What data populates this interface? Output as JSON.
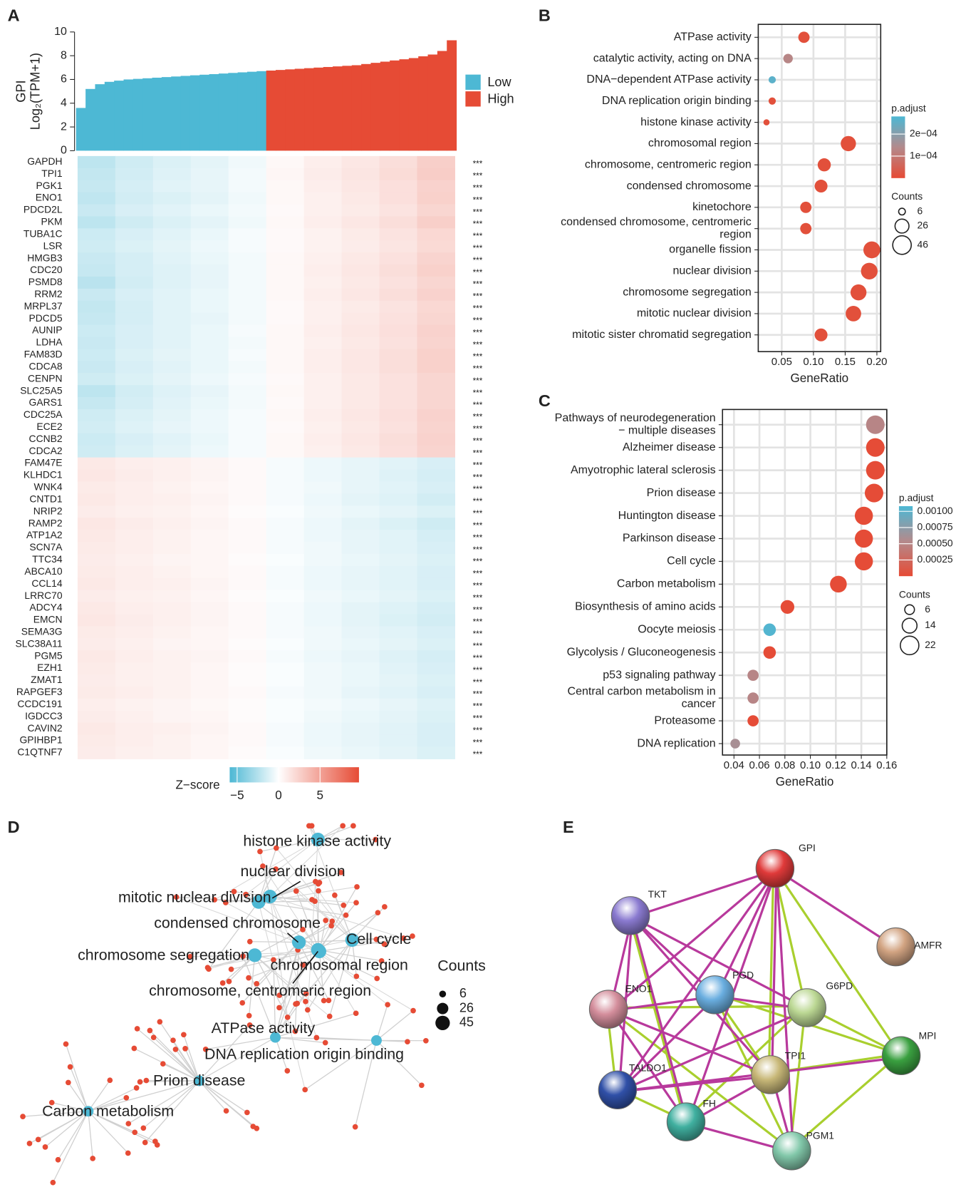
{
  "panel_labels": [
    "A",
    "B",
    "C",
    "D",
    "E"
  ],
  "chart_data": [
    {
      "type": "bar",
      "ylabel": "GPI\nLog₂(TPM+1)",
      "ylim": [
        0,
        10
      ],
      "yticks": [
        0,
        2,
        4,
        6,
        8,
        10
      ],
      "legend": "right",
      "series": [
        {
          "name": "Low",
          "color": "#4DB8D4",
          "values": [
            3.6,
            5.2,
            5.6,
            5.8,
            5.9,
            6.0,
            6.05,
            6.1,
            6.15,
            6.2,
            6.25,
            6.3,
            6.35,
            6.4,
            6.45,
            6.5,
            6.55,
            6.6,
            6.65,
            6.7
          ]
        },
        {
          "name": "High",
          "color": "#E64B35",
          "values": [
            6.75,
            6.8,
            6.85,
            6.9,
            6.95,
            7.0,
            7.05,
            7.1,
            7.15,
            7.2,
            7.3,
            7.4,
            7.5,
            7.6,
            7.7,
            7.8,
            7.95,
            8.1,
            8.4,
            9.3
          ]
        }
      ]
    },
    {
      "type": "heatmap",
      "rows": [
        "GAPDH",
        "TPI1",
        "PGK1",
        "ENO1",
        "PDCD2L",
        "PKM",
        "TUBA1C",
        "LSR",
        "HMGB3",
        "CDC20",
        "PSMD8",
        "RRM2",
        "MRPL37",
        "PDCD5",
        "AUNIP",
        "LDHA",
        "FAM83D",
        "CDCA8",
        "CENPN",
        "SLC25A5",
        "GARS1",
        "CDC25A",
        "ECE2",
        "CCNB2",
        "CDCA2",
        "FAM47E",
        "KLHDC1",
        "WNK4",
        "CNTD1",
        "NRIP2",
        "RAMP2",
        "ATP1A2",
        "SCN7A",
        "TTC34",
        "ABCA10",
        "CCL14",
        "LRRC70",
        "ADCY4",
        "EMCN",
        "SEMA3G",
        "SLC38A11",
        "PGM5",
        "EZH1",
        "ZMAT1",
        "RAPGEF3",
        "CCDC191",
        "IGDCC3",
        "CAVIN2",
        "GPIHBP1",
        "C1QTNF7"
      ],
      "values": [
        [
          -2.2,
          -1.6,
          -1.2,
          -0.9,
          -0.5,
          0.4,
          0.9,
          1.3,
          1.8,
          2.6
        ],
        [
          -2.0,
          -1.5,
          -1.1,
          -0.8,
          -0.4,
          0.5,
          1.0,
          1.4,
          1.9,
          2.7
        ],
        [
          -1.9,
          -1.4,
          -1.0,
          -0.8,
          -0.4,
          0.4,
          0.9,
          1.3,
          1.7,
          2.4
        ],
        [
          -2.1,
          -1.5,
          -1.2,
          -0.9,
          -0.5,
          0.4,
          0.8,
          1.2,
          1.7,
          2.5
        ],
        [
          -1.8,
          -1.3,
          -1.0,
          -0.7,
          -0.4,
          0.3,
          0.8,
          1.1,
          1.5,
          2.2
        ],
        [
          -2.2,
          -1.6,
          -1.2,
          -0.9,
          -0.5,
          0.4,
          0.9,
          1.3,
          1.8,
          2.6
        ],
        [
          -1.7,
          -1.3,
          -1.0,
          -0.7,
          -0.3,
          0.3,
          0.7,
          1.1,
          1.5,
          2.1
        ],
        [
          -1.6,
          -1.2,
          -0.9,
          -0.6,
          -0.3,
          0.3,
          0.7,
          1.0,
          1.4,
          2.0
        ],
        [
          -1.8,
          -1.4,
          -1.0,
          -0.7,
          -0.4,
          0.4,
          0.8,
          1.2,
          1.6,
          2.3
        ],
        [
          -1.9,
          -1.4,
          -1.1,
          -0.8,
          -0.4,
          0.4,
          0.9,
          1.3,
          1.8,
          2.5
        ],
        [
          -2.3,
          -1.5,
          -1.1,
          -0.8,
          -0.4,
          0.4,
          0.8,
          1.2,
          1.6,
          2.2
        ],
        [
          -1.8,
          -1.3,
          -1.0,
          -0.7,
          -0.4,
          0.4,
          0.9,
          1.3,
          1.8,
          2.4
        ],
        [
          -2.0,
          -1.4,
          -1.0,
          -0.7,
          -0.4,
          0.3,
          0.8,
          1.1,
          1.5,
          2.1
        ],
        [
          -1.9,
          -1.4,
          -1.0,
          -0.8,
          -0.4,
          0.3,
          0.8,
          1.2,
          1.6,
          2.2
        ],
        [
          -1.7,
          -1.3,
          -1.0,
          -0.7,
          -0.3,
          0.4,
          0.9,
          1.3,
          1.7,
          2.4
        ],
        [
          -1.8,
          -1.3,
          -1.0,
          -0.7,
          -0.4,
          0.4,
          0.8,
          1.2,
          1.6,
          2.3
        ],
        [
          -1.7,
          -1.2,
          -0.9,
          -0.7,
          -0.3,
          0.4,
          0.9,
          1.3,
          1.8,
          2.5
        ],
        [
          -1.8,
          -1.3,
          -1.0,
          -0.7,
          -0.4,
          0.4,
          0.9,
          1.3,
          1.8,
          2.5
        ],
        [
          -1.6,
          -1.2,
          -0.9,
          -0.6,
          -0.3,
          0.3,
          0.8,
          1.2,
          1.6,
          2.2
        ],
        [
          -2.2,
          -1.5,
          -1.1,
          -0.8,
          -0.4,
          0.4,
          0.8,
          1.2,
          1.6,
          2.2
        ],
        [
          -1.9,
          -1.4,
          -1.0,
          -0.7,
          -0.4,
          0.3,
          0.8,
          1.2,
          1.6,
          2.2
        ],
        [
          -1.6,
          -1.2,
          -0.9,
          -0.6,
          -0.3,
          0.4,
          0.9,
          1.3,
          1.7,
          2.4
        ],
        [
          -1.5,
          -1.1,
          -0.8,
          -0.6,
          -0.3,
          0.3,
          0.8,
          1.2,
          1.6,
          2.3
        ],
        [
          -1.7,
          -1.3,
          -1.0,
          -0.7,
          -0.3,
          0.4,
          0.9,
          1.3,
          1.8,
          2.4
        ],
        [
          -1.6,
          -1.2,
          -0.9,
          -0.6,
          -0.3,
          0.4,
          0.8,
          1.2,
          1.7,
          2.3
        ],
        [
          1.2,
          0.9,
          0.8,
          0.6,
          0.3,
          -0.3,
          -0.6,
          -0.8,
          -1.0,
          -1.3
        ],
        [
          1.3,
          1.0,
          0.8,
          0.6,
          0.3,
          -0.3,
          -0.6,
          -0.8,
          -1.1,
          -1.4
        ],
        [
          1.1,
          0.9,
          0.7,
          0.5,
          0.3,
          -0.3,
          -0.5,
          -0.8,
          -1.0,
          -1.3
        ],
        [
          1.2,
          0.9,
          0.8,
          0.6,
          0.3,
          -0.3,
          -0.6,
          -0.9,
          -1.1,
          -1.5
        ],
        [
          1.0,
          0.8,
          0.7,
          0.5,
          0.2,
          -0.2,
          -0.5,
          -0.7,
          -0.9,
          -1.2
        ],
        [
          1.3,
          1.0,
          0.8,
          0.6,
          0.3,
          -0.3,
          -0.6,
          -0.9,
          -1.2,
          -1.6
        ],
        [
          1.2,
          0.9,
          0.7,
          0.5,
          0.3,
          -0.3,
          -0.6,
          -0.8,
          -1.0,
          -1.4
        ],
        [
          1.1,
          0.9,
          0.7,
          0.5,
          0.3,
          -0.3,
          -0.5,
          -0.8,
          -1.0,
          -1.3
        ],
        [
          1.0,
          0.8,
          0.6,
          0.5,
          0.2,
          -0.2,
          -0.5,
          -0.7,
          -0.9,
          -1.2
        ],
        [
          1.1,
          0.9,
          0.7,
          0.5,
          0.3,
          -0.3,
          -0.6,
          -0.8,
          -1.0,
          -1.3
        ],
        [
          1.2,
          0.9,
          0.8,
          0.6,
          0.3,
          -0.3,
          -0.6,
          -0.8,
          -1.0,
          -1.3
        ],
        [
          1.0,
          0.8,
          0.7,
          0.5,
          0.2,
          -0.2,
          -0.5,
          -0.7,
          -0.9,
          -1.2
        ],
        [
          1.2,
          0.9,
          0.8,
          0.6,
          0.3,
          -0.3,
          -0.6,
          -0.9,
          -1.1,
          -1.4
        ],
        [
          1.3,
          1.0,
          0.8,
          0.6,
          0.3,
          -0.3,
          -0.6,
          -0.9,
          -1.2,
          -1.5
        ],
        [
          1.1,
          0.9,
          0.7,
          0.5,
          0.3,
          -0.3,
          -0.5,
          -0.8,
          -1.0,
          -1.3
        ],
        [
          1.0,
          0.8,
          0.6,
          0.5,
          0.2,
          -0.2,
          -0.5,
          -0.7,
          -0.9,
          -1.2
        ],
        [
          1.2,
          0.9,
          0.7,
          0.6,
          0.3,
          -0.3,
          -0.6,
          -0.8,
          -1.1,
          -1.4
        ],
        [
          1.1,
          0.8,
          0.7,
          0.5,
          0.2,
          -0.2,
          -0.5,
          -0.7,
          -1.0,
          -1.3
        ],
        [
          1.0,
          0.8,
          0.7,
          0.5,
          0.2,
          -0.2,
          -0.5,
          -0.7,
          -0.9,
          -1.2
        ],
        [
          1.1,
          0.9,
          0.7,
          0.5,
          0.3,
          -0.3,
          -0.5,
          -0.8,
          -1.0,
          -1.3
        ],
        [
          0.9,
          0.7,
          0.6,
          0.4,
          0.2,
          -0.2,
          -0.4,
          -0.6,
          -0.8,
          -1.1
        ],
        [
          1.0,
          0.8,
          0.6,
          0.5,
          0.2,
          -0.2,
          -0.5,
          -0.7,
          -0.9,
          -1.2
        ],
        [
          1.2,
          0.9,
          0.8,
          0.6,
          0.3,
          -0.3,
          -0.6,
          -0.8,
          -1.0,
          -1.3
        ],
        [
          1.1,
          0.9,
          0.7,
          0.5,
          0.3,
          -0.3,
          -0.6,
          -0.8,
          -1.0,
          -1.3
        ],
        [
          1.0,
          0.8,
          0.7,
          0.5,
          0.2,
          -0.2,
          -0.5,
          -0.7,
          -0.9,
          -1.2
        ]
      ],
      "annotations": [
        "***",
        "***",
        "***",
        "***",
        "***",
        "***",
        "***",
        "***",
        "***",
        "***",
        "***",
        "***",
        "***",
        "***",
        "***",
        "***",
        "***",
        "***",
        "***",
        "***",
        "***",
        "***",
        "***",
        "***",
        "***",
        "***",
        "***",
        "***",
        "***",
        "***",
        "***",
        "***",
        "***",
        "***",
        "***",
        "***",
        "***",
        "***",
        "***",
        "***",
        "***",
        "***",
        "***",
        "***",
        "***",
        "***",
        "***",
        "***",
        "***",
        "***"
      ],
      "colorbar": {
        "label": "Z−score",
        "lim": [
          -5.9,
          9.7
        ],
        "ticks": [
          {
            "value": -5,
            "label": "−5"
          },
          0,
          5
        ],
        "colors": [
          "#4DB8D4",
          "#FFFFFF",
          "#E64B35"
        ]
      }
    },
    {
      "type": "dot",
      "xlabel": "GeneRatio",
      "xlim": [
        0.013,
        0.206
      ],
      "xticks": [
        0.05,
        {
          "value": 0.1,
          "label": "0.10"
        },
        0.15,
        {
          "value": 0.2,
          "label": "0.20"
        }
      ],
      "grid": true,
      "categories": [
        "ATPase activity",
        "catalytic activity, acting on DNA",
        "DNA−dependent ATPase activity",
        "DNA replication origin binding",
        "histone kinase activity",
        "chromosomal region",
        "chromosome, centromeric region",
        "condensed chromosome",
        "kinetochore",
        "condensed chromosome, centromeric\nregion",
        "organelle fission",
        "nuclear division",
        "chromosome segregation",
        "mitotic nuclear division",
        "mitotic sister chromatid segregation"
      ],
      "x": [
        0.085,
        0.06,
        0.035,
        0.035,
        0.026,
        0.155,
        0.117,
        0.112,
        0.088,
        0.088,
        0.192,
        0.188,
        0.171,
        0.163,
        0.112
      ],
      "sizes": [
        17,
        12,
        7,
        7,
        5,
        31,
        23,
        22,
        17,
        17,
        38,
        37,
        34,
        32,
        22
      ],
      "p_adjust": [
        1e-05,
        0.00013,
        0.00026,
        1e-05,
        1e-05,
        1e-05,
        1e-05,
        1e-05,
        1e-05,
        1e-05,
        1e-05,
        1e-05,
        1e-05,
        1e-05,
        1e-05
      ],
      "color_title": "p.adjust",
      "color_lim": [
        0,
        0.00028
      ],
      "color_ticks": [
        {
          "value": 0.0001,
          "label": "1e−04"
        },
        {
          "value": 0.0002,
          "label": "2e−04"
        }
      ],
      "colors": [
        "#E64B35",
        "#B38A8C",
        "#4DB8D4"
      ],
      "size_title": "Counts",
      "size_ticks": [
        6,
        26,
        46
      ]
    },
    {
      "type": "dot",
      "xlabel": "GeneRatio",
      "xlim": [
        0.031,
        0.16
      ],
      "xticks": [
        0.04,
        0.06,
        0.08,
        {
          "value": 0.1,
          "label": "0.10"
        },
        0.12,
        0.14,
        0.16
      ],
      "grid": true,
      "categories": [
        "Pathways of neurodegeneration\n− multiple diseases",
        "Alzheimer disease",
        "Amyotrophic lateral sclerosis",
        "Prion disease",
        "Huntington disease",
        "Parkinson disease",
        "Cell cycle",
        "Carbon metabolism",
        "Biosynthesis of amino acids",
        "Oocyte meiosis",
        "Glycolysis / Gluconeogenesis",
        "p53 signaling pathway",
        "Central carbon metabolism in\ncancer",
        "Proteasome",
        "DNA replication"
      ],
      "x": [
        0.151,
        0.151,
        0.151,
        0.15,
        0.142,
        0.142,
        0.142,
        0.122,
        0.082,
        0.068,
        0.068,
        0.055,
        0.055,
        0.055,
        0.041
      ],
      "sizes": [
        22,
        22,
        22,
        22,
        21,
        21,
        21,
        18,
        12,
        10,
        10,
        8,
        8,
        8,
        6
      ],
      "p_adjust": [
        0.0005,
        1e-05,
        1e-05,
        1e-05,
        1e-05,
        1e-05,
        1e-05,
        1e-05,
        1e-05,
        0.00105,
        1e-05,
        0.0005,
        0.0005,
        1e-05,
        0.0006
      ],
      "color_title": "p.adjust",
      "color_lim": [
        0,
        0.00108
      ],
      "color_ticks": [
        {
          "value": 0.00025,
          "label": "0.00025"
        },
        {
          "value": 0.0005,
          "label": "0.00050"
        },
        0.00075,
        {
          "value": 0.001,
          "label": "0.00100"
        }
      ],
      "colors": [
        "#E64B35",
        "#B38A8C",
        "#4DB8D4"
      ],
      "size_title": "Counts",
      "size_ticks": [
        6,
        14,
        22
      ]
    }
  ],
  "network_d": {
    "nodes": [
      "histone kinase activity",
      "nuclear division",
      "mitotic nuclear division",
      "condensed chromosome",
      "Cell cycle",
      "chromosome segregation",
      "chromosomal region",
      "chromosome, centromeric region",
      "ATPase activity",
      "DNA replication origin binding",
      "Prion disease",
      "Carbon metabolism"
    ],
    "legend": {
      "title": "Counts",
      "sizes": [
        6,
        26,
        45
      ]
    }
  },
  "network_e": {
    "nodes": [
      "GPI",
      "TKT",
      "AMFR",
      "ENO1",
      "PGD",
      "G6PD",
      "MPI",
      "TALDO1",
      "TPI1",
      "FH",
      "PGM1"
    ]
  }
}
